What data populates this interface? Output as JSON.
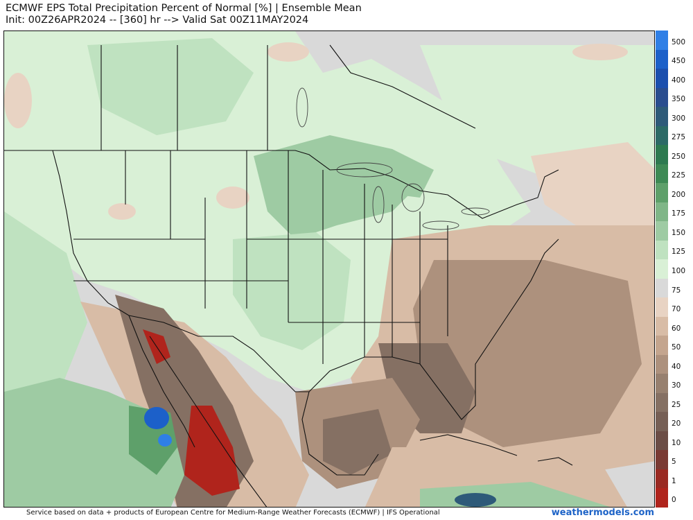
{
  "header": {
    "title_line1": "ECMWF EPS Total Precipitation Percent of Normal [%] | Ensemble Mean",
    "title_line2": "Init: 00Z26APR2024 -- [360] hr --> Valid Sat 00Z11MAY2024"
  },
  "legend": {
    "levels": [
      {
        "label": "500",
        "color": "#2f7fe6"
      },
      {
        "label": "450",
        "color": "#1c60c9"
      },
      {
        "label": "400",
        "color": "#1b4fae"
      },
      {
        "label": "350",
        "color": "#2a4d8f"
      },
      {
        "label": "300",
        "color": "#2e5a79"
      },
      {
        "label": "275",
        "color": "#2c6a66"
      },
      {
        "label": "250",
        "color": "#2d7a50"
      },
      {
        "label": "225",
        "color": "#3e8a55"
      },
      {
        "label": "200",
        "color": "#5ea06a"
      },
      {
        "label": "175",
        "color": "#7fb687"
      },
      {
        "label": "150",
        "color": "#9ecba3"
      },
      {
        "label": "125",
        "color": "#bfe2c0"
      },
      {
        "label": "100",
        "color": "#d9f0d6"
      },
      {
        "label": "75",
        "color": "#d9d9d9"
      },
      {
        "label": "70",
        "color": "#e8d3c3"
      },
      {
        "label": "60",
        "color": "#d8bca6"
      },
      {
        "label": "50",
        "color": "#c4a58e"
      },
      {
        "label": "40",
        "color": "#ad917d"
      },
      {
        "label": "30",
        "color": "#97806f"
      },
      {
        "label": "25",
        "color": "#857063"
      },
      {
        "label": "20",
        "color": "#765f55"
      },
      {
        "label": "10",
        "color": "#6b4d46"
      },
      {
        "label": "5",
        "color": "#7a3a33"
      },
      {
        "label": "1",
        "color": "#9a2a22"
      },
      {
        "label": "0",
        "color": "#b0241c"
      }
    ]
  },
  "map": {
    "colors": {
      "normal_gray": "#d9d9d9",
      "light_green": "#d9f0d6",
      "green": "#bfe2c0",
      "mid_green": "#9ecba3",
      "dark_green": "#5ea06a",
      "blue": "#1c60c9",
      "light_tan": "#e8d3c3",
      "tan": "#d8bca6",
      "brown": "#ad917d",
      "dark_brown": "#857063",
      "red": "#b0241c",
      "border_line": "#111111",
      "lake_line": "#444444"
    }
  },
  "footer": {
    "credit": "Service based on data + products of European Centre for Medium-Range Weather Forecasts (ECMWF) | IFS Operational",
    "brand": "weathermodels.com"
  }
}
